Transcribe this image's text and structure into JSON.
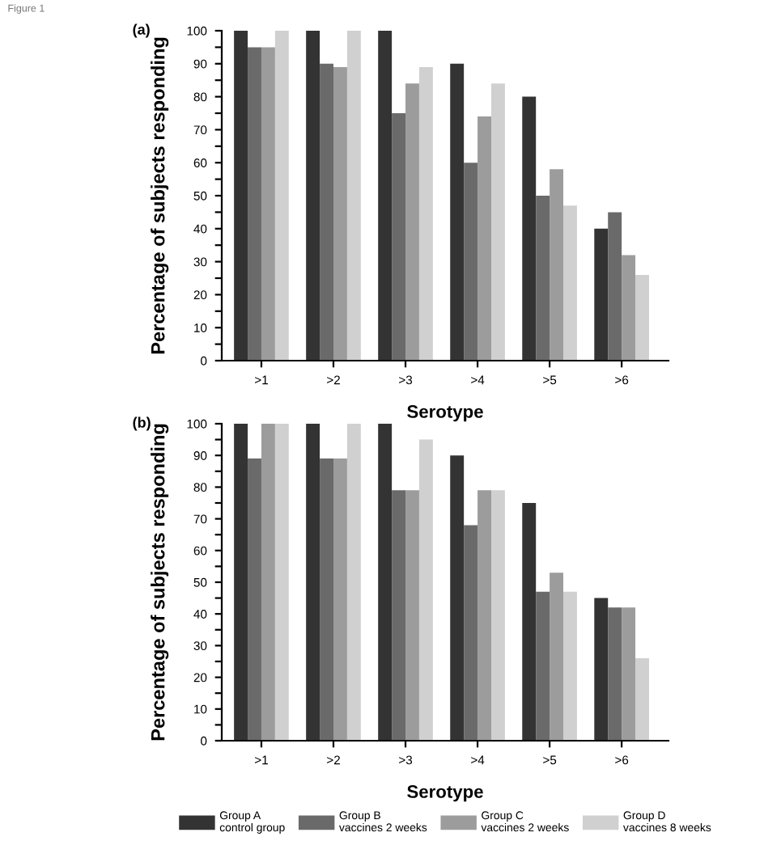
{
  "chart_data": [
    {
      "type": "bar",
      "title": "(a)",
      "annotations": [
        "Figure 1"
      ],
      "xlabel": "Serotype",
      "ylabel": "Percentage of subjects responding",
      "categories": [
        ">1",
        ">2",
        ">3",
        ">4",
        ">5",
        ">6"
      ],
      "series": [
        {
          "color": "#333333",
          "values": [
            100,
            100,
            100,
            90,
            80,
            40
          ]
        },
        {
          "color": "#6a6a6a",
          "values": [
            95,
            90,
            75,
            60,
            50,
            45
          ]
        },
        {
          "color": "#9c9c9c",
          "values": [
            95,
            89,
            84,
            74,
            58,
            32
          ]
        },
        {
          "color": "#d0d0d0",
          "values": [
            100,
            100,
            89,
            84,
            47,
            26
          ]
        }
      ],
      "ylim": [
        0,
        100
      ],
      "yticks": [
        0,
        10,
        20,
        30,
        40,
        50,
        60,
        70,
        80,
        90,
        100
      ],
      "grid": false,
      "legend": false
    },
    {
      "type": "bar",
      "title": "(b)",
      "xlabel": "Serotype",
      "ylabel": "Percentage of subjects responding",
      "categories": [
        ">1",
        ">2",
        ">3",
        ">4",
        ">5",
        ">6"
      ],
      "series": [
        {
          "name": "Group A\ncontrol group",
          "color": "#333333",
          "values": [
            100,
            100,
            100,
            90,
            75,
            45
          ]
        },
        {
          "name": "Group B\nvaccines 2 weeks",
          "color": "#6a6a6a",
          "values": [
            89,
            89,
            79,
            68,
            47,
            42
          ]
        },
        {
          "name": "Group C\nvaccines 2 weeks",
          "color": "#9c9c9c",
          "values": [
            100,
            89,
            79,
            79,
            53,
            42
          ]
        },
        {
          "name": "Group D\nvaccines 8 weeks",
          "color": "#d0d0d0",
          "values": [
            100,
            100,
            95,
            79,
            47,
            26
          ]
        }
      ],
      "ylim": [
        0,
        100
      ],
      "yticks": [
        0,
        10,
        20,
        30,
        40,
        50,
        60,
        70,
        80,
        90,
        100
      ],
      "grid": false,
      "legend": "bottom"
    }
  ]
}
